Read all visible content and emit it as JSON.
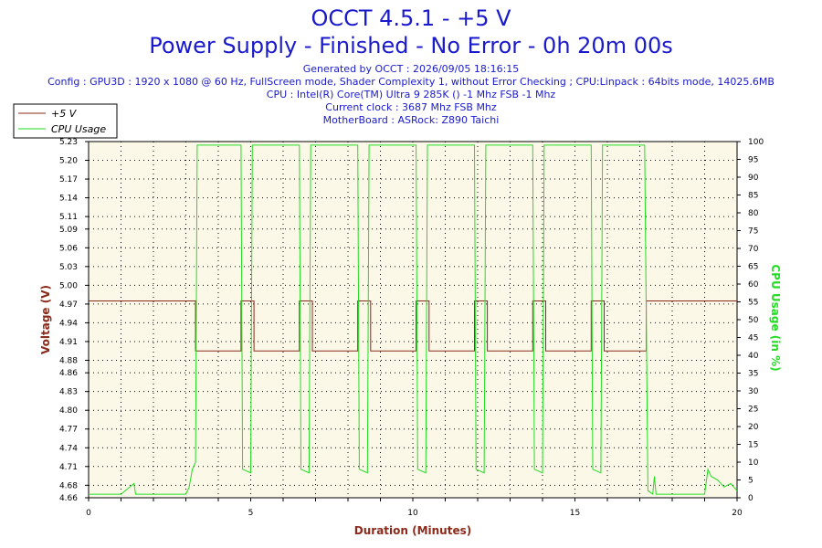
{
  "header": {
    "title": "OCCT 4.5.1 - +5 V",
    "subtitle": "Power Supply - Finished - No Error - 0h 20m 00s",
    "generated": "Generated by OCCT : 2026/09/05 18:16:15",
    "config": "Config : GPU3D : 1920 x 1080 @ 60 Hz, FullScreen mode, Shader Complexity 1, without Error Checking ; CPU:Linpack : 64bits mode, 14025.6MB",
    "cpu": "CPU : Intel(R) Core(TM) Ultra 9 285K () -1 Mhz FSB -1 Mhz",
    "clock": "Current clock : 3687 Mhz FSB  Mhz",
    "motherboard": "MotherBoard : ASRock: Z890 Taichi"
  },
  "colors": {
    "voltage": "#8b2a1a",
    "cpu": "#22dd22",
    "plot_bg": "#fcf8e8",
    "title": "#1a1acc"
  },
  "chart_data": {
    "type": "line",
    "xlabel": "Duration (Minutes)",
    "ylabel": "Voltage (V)",
    "y2label": "CPU Usage (in %)",
    "xlim": [
      0,
      20
    ],
    "ylim": [
      4.66,
      5.23
    ],
    "y2lim": [
      0,
      100
    ],
    "x_ticks": [
      0,
      5,
      10,
      15,
      20
    ],
    "y_ticks": [
      4.66,
      4.68,
      4.71,
      4.74,
      4.77,
      4.8,
      4.83,
      4.86,
      4.88,
      4.91,
      4.94,
      4.97,
      5.0,
      5.03,
      5.06,
      5.09,
      5.11,
      5.14,
      5.17,
      5.2,
      5.23
    ],
    "y_tick_labels": [
      "4.66",
      "4.68",
      "4.71",
      "4.74",
      "4.77",
      "4.80",
      "4.83",
      "4.86",
      "4.88",
      "4.91",
      "4.94",
      "4.97",
      "5.00",
      "5.03",
      "5.06",
      "5.09",
      "5.11",
      "5.14",
      "5.17",
      "5.20",
      "5.23"
    ],
    "y2_ticks": [
      0,
      5,
      10,
      15,
      20,
      25,
      30,
      35,
      40,
      45,
      50,
      55,
      60,
      65,
      70,
      75,
      80,
      85,
      90,
      95,
      100
    ],
    "grid": true,
    "legend_position": "top-left",
    "series": [
      {
        "name": "+5 V",
        "axis": "left",
        "points": [
          [
            0,
            4.975
          ],
          [
            3.3,
            4.975
          ],
          [
            3.3,
            4.895
          ],
          [
            4.7,
            4.895
          ],
          [
            4.7,
            4.975
          ],
          [
            5.1,
            4.975
          ],
          [
            5.1,
            4.895
          ],
          [
            6.5,
            4.895
          ],
          [
            6.5,
            4.975
          ],
          [
            6.9,
            4.975
          ],
          [
            6.9,
            4.895
          ],
          [
            8.3,
            4.895
          ],
          [
            8.3,
            4.975
          ],
          [
            8.7,
            4.975
          ],
          [
            8.7,
            4.895
          ],
          [
            10.1,
            4.895
          ],
          [
            10.1,
            4.975
          ],
          [
            10.5,
            4.975
          ],
          [
            10.5,
            4.895
          ],
          [
            11.9,
            4.895
          ],
          [
            11.9,
            4.975
          ],
          [
            12.3,
            4.975
          ],
          [
            12.3,
            4.895
          ],
          [
            13.7,
            4.895
          ],
          [
            13.7,
            4.975
          ],
          [
            14.1,
            4.975
          ],
          [
            14.1,
            4.895
          ],
          [
            15.5,
            4.895
          ],
          [
            15.5,
            4.975
          ],
          [
            15.9,
            4.975
          ],
          [
            15.9,
            4.895
          ],
          [
            17.2,
            4.895
          ],
          [
            17.2,
            4.975
          ],
          [
            20,
            4.975
          ]
        ]
      },
      {
        "name": "CPU Usage",
        "axis": "right",
        "points": [
          [
            0,
            1
          ],
          [
            1,
            1
          ],
          [
            1.4,
            4
          ],
          [
            1.45,
            1
          ],
          [
            3.0,
            1
          ],
          [
            3.1,
            3
          ],
          [
            3.2,
            8
          ],
          [
            3.3,
            10
          ],
          [
            3.35,
            99
          ],
          [
            4.7,
            99
          ],
          [
            4.75,
            8
          ],
          [
            5.0,
            7
          ],
          [
            5.05,
            99
          ],
          [
            6.5,
            99
          ],
          [
            6.55,
            8
          ],
          [
            6.8,
            7
          ],
          [
            6.85,
            99
          ],
          [
            8.3,
            99
          ],
          [
            8.35,
            8
          ],
          [
            8.6,
            7
          ],
          [
            8.65,
            99
          ],
          [
            10.1,
            99
          ],
          [
            10.15,
            8
          ],
          [
            10.4,
            7
          ],
          [
            10.45,
            99
          ],
          [
            11.9,
            99
          ],
          [
            11.95,
            8
          ],
          [
            12.2,
            7
          ],
          [
            12.25,
            99
          ],
          [
            13.7,
            99
          ],
          [
            13.75,
            8
          ],
          [
            14.0,
            7
          ],
          [
            14.05,
            99
          ],
          [
            15.5,
            99
          ],
          [
            15.55,
            8
          ],
          [
            15.8,
            7
          ],
          [
            15.85,
            99
          ],
          [
            17.15,
            99
          ],
          [
            17.25,
            2
          ],
          [
            17.4,
            1
          ],
          [
            17.45,
            6
          ],
          [
            17.5,
            1
          ],
          [
            19.0,
            1
          ],
          [
            19.1,
            8
          ],
          [
            19.2,
            6
          ],
          [
            19.4,
            5
          ],
          [
            19.6,
            3
          ],
          [
            19.8,
            4
          ],
          [
            20,
            2
          ]
        ]
      }
    ]
  }
}
